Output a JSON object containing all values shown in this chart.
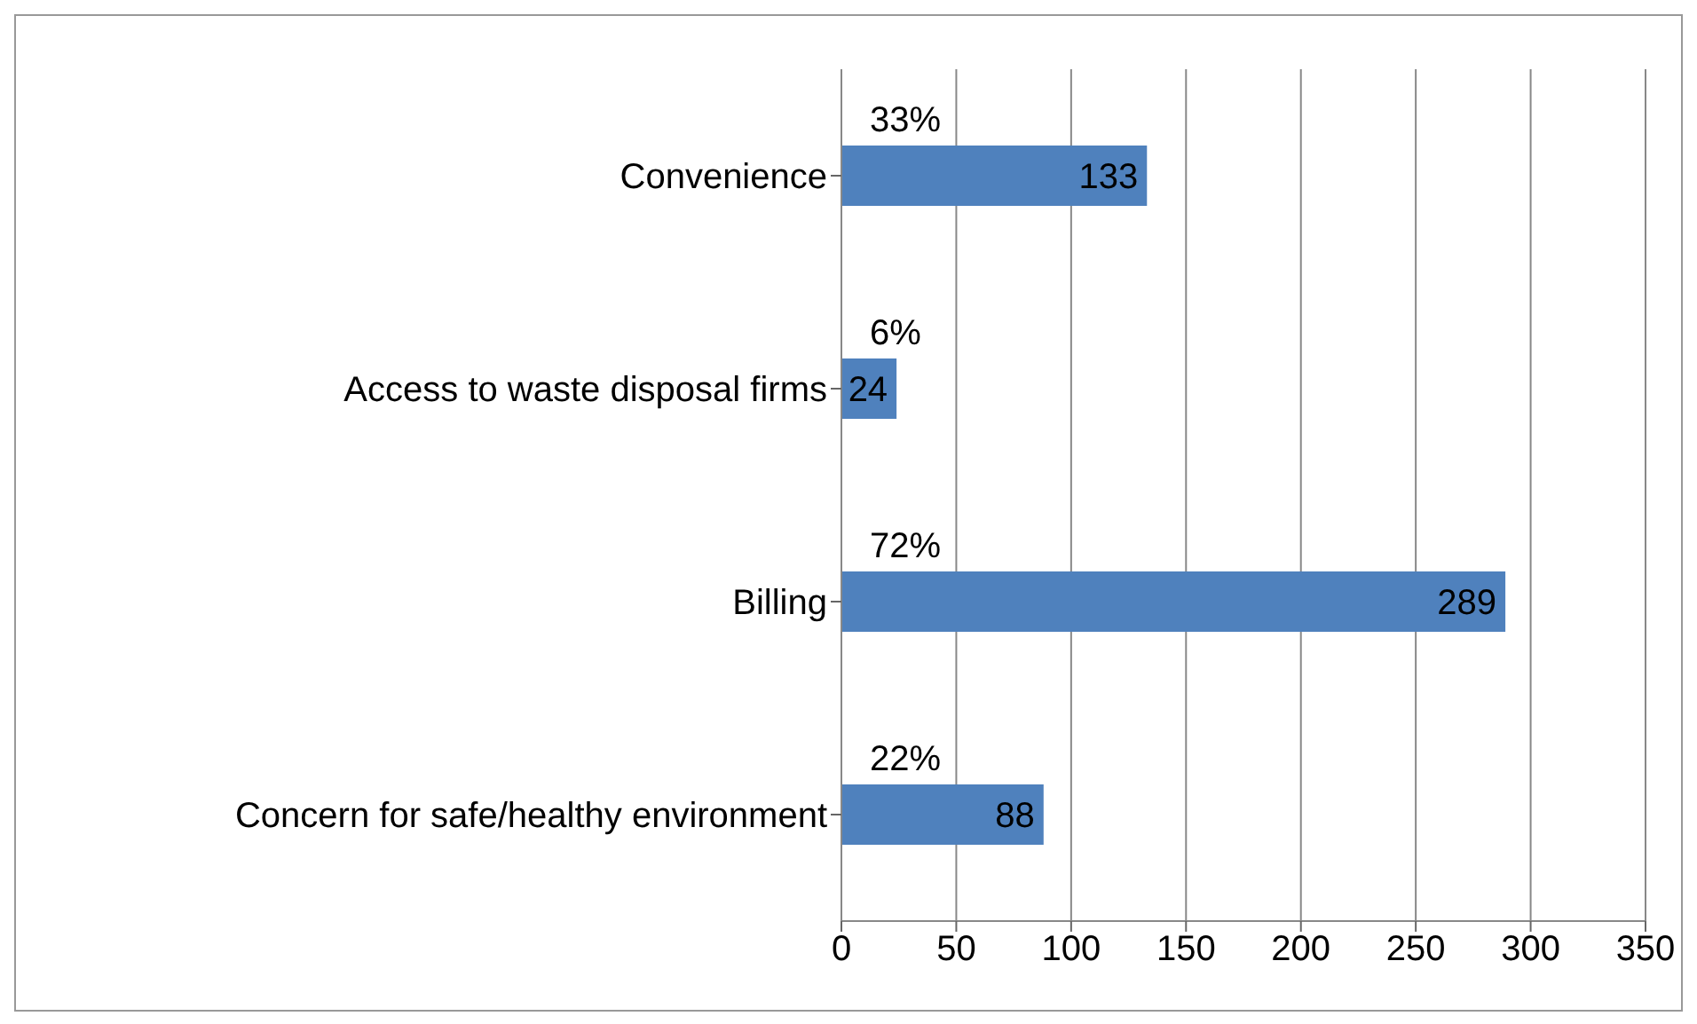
{
  "chart_data": {
    "type": "bar",
    "orientation": "horizontal",
    "categories": [
      "Convenience",
      "Access to waste disposal firms",
      "Billing",
      "Concern for safe/healthy environment"
    ],
    "values": [
      133,
      24,
      289,
      88
    ],
    "color": "#4f81bd",
    "xlim": [
      0,
      350
    ],
    "xticks": [
      0,
      50,
      100,
      150,
      200,
      250,
      300,
      350
    ],
    "grid": "x",
    "data_labels": true,
    "annotations": [
      "33%",
      "6%",
      "72%",
      "22%"
    ]
  }
}
